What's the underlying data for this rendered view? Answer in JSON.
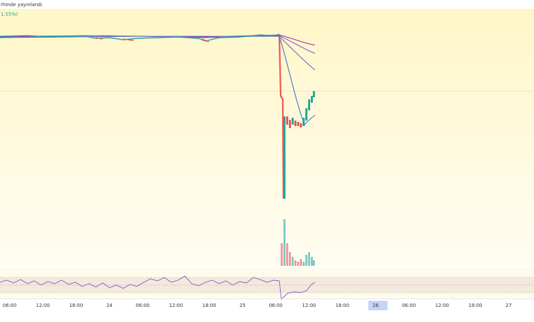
{
  "header": {
    "published": "rhinde yayınlandı",
    "change": "1.55%)"
  },
  "x_axis": {
    "labels": [
      "06:00",
      "12:00",
      "18:00",
      "24",
      "06:00",
      "12:00",
      "18:00",
      "25",
      "06:00",
      "12:00",
      "18:00",
      "26",
      "06:00",
      "12:00",
      "18:00",
      "27"
    ]
  }
}
